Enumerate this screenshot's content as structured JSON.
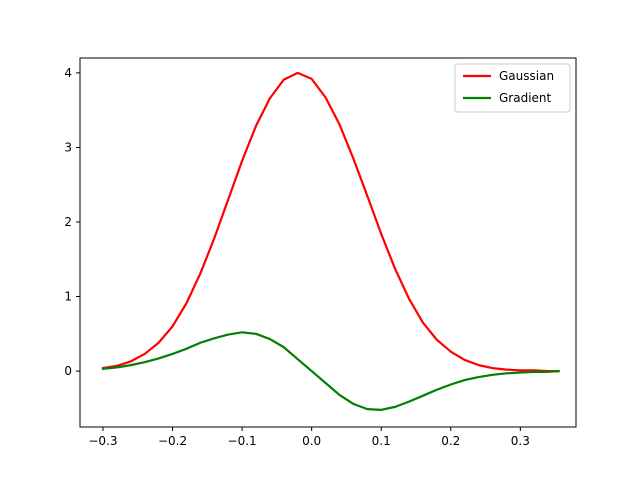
{
  "chart_data": {
    "type": "line",
    "title": "",
    "xlabel": "",
    "ylabel": "",
    "xlim": [
      -0.333,
      0.38
    ],
    "ylim": [
      -0.75,
      4.2
    ],
    "x_ticks": [
      -0.3,
      -0.2,
      -0.1,
      0.0,
      0.1,
      0.2,
      0.3
    ],
    "x_tick_labels": [
      "−0.3",
      "−0.2",
      "−0.1",
      "0.0",
      "0.1",
      "0.2",
      "0.3"
    ],
    "y_ticks": [
      0,
      1,
      2,
      3,
      4
    ],
    "y_tick_labels": [
      "0",
      "1",
      "2",
      "3",
      "4"
    ],
    "grid": false,
    "legend_position": "top-right",
    "x": [
      -0.3,
      -0.28,
      -0.26,
      -0.24,
      -0.22,
      -0.2,
      -0.18,
      -0.16,
      -0.14,
      -0.12,
      -0.1,
      -0.08,
      -0.06,
      -0.04,
      -0.02,
      0.0,
      0.02,
      0.04,
      0.06,
      0.08,
      0.1,
      0.12,
      0.14,
      0.16,
      0.18,
      0.2,
      0.22,
      0.24,
      0.26,
      0.28,
      0.3,
      0.32,
      0.34,
      0.355
    ],
    "series": [
      {
        "name": "Gaussian",
        "color": "#ff0000",
        "values": [
          0.04,
          0.07,
          0.13,
          0.23,
          0.38,
          0.6,
          0.91,
          1.31,
          1.78,
          2.3,
          2.82,
          3.29,
          3.66,
          3.91,
          4.0,
          3.92,
          3.67,
          3.31,
          2.85,
          2.35,
          1.84,
          1.37,
          0.97,
          0.65,
          0.42,
          0.26,
          0.15,
          0.08,
          0.04,
          0.02,
          0.01,
          0.01,
          0.0,
          0.0
        ]
      },
      {
        "name": "Gradient",
        "color": "#008000",
        "values": [
          0.03,
          0.05,
          0.08,
          0.12,
          0.17,
          0.23,
          0.3,
          0.38,
          0.44,
          0.49,
          0.52,
          0.5,
          0.43,
          0.32,
          0.16,
          0.0,
          -0.16,
          -0.32,
          -0.44,
          -0.51,
          -0.52,
          -0.48,
          -0.41,
          -0.33,
          -0.25,
          -0.18,
          -0.12,
          -0.08,
          -0.05,
          -0.03,
          -0.02,
          -0.01,
          -0.01,
          0.0
        ]
      }
    ]
  }
}
